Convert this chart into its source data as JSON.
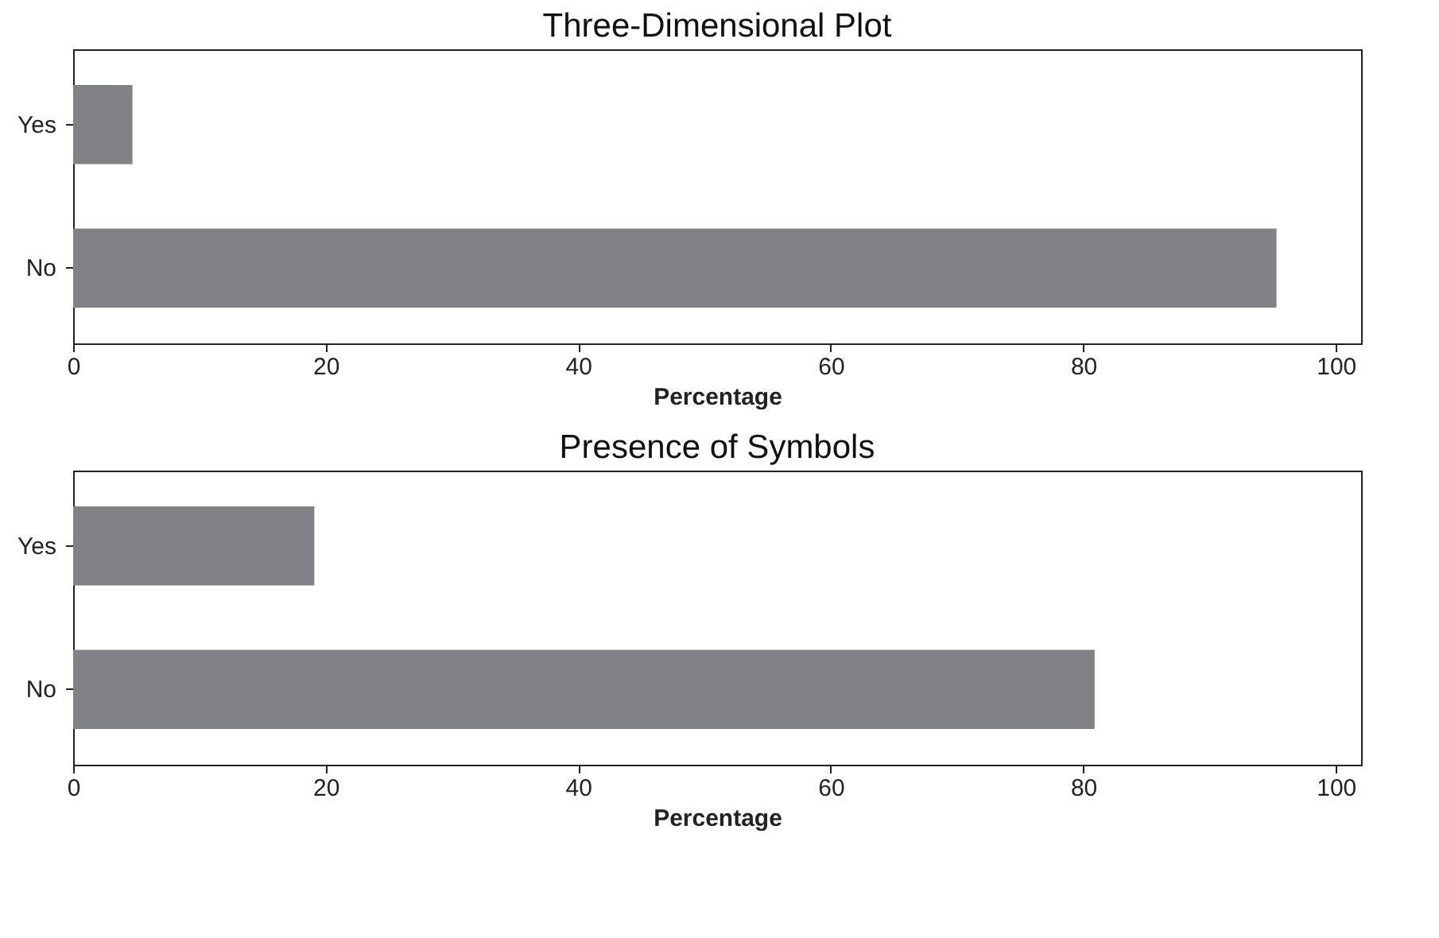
{
  "chart_data": [
    {
      "type": "bar",
      "orientation": "horizontal",
      "title": "Three-Dimensional Plot",
      "xlabel": "Percentage",
      "categories": [
        "Yes",
        "No"
      ],
      "values": [
        4.7,
        95.3
      ],
      "color": "#808285",
      "xlim": [
        0,
        102
      ],
      "xticks": [
        0,
        20,
        40,
        60,
        80,
        100
      ],
      "grid": false
    },
    {
      "type": "bar",
      "orientation": "horizontal",
      "title": "Presence of Symbols",
      "xlabel": "Percentage",
      "categories": [
        "Yes",
        "No"
      ],
      "values": [
        19.1,
        80.9
      ],
      "color": "#808285",
      "xlim": [
        0,
        102
      ],
      "xticks": [
        0,
        20,
        40,
        60,
        80,
        100
      ],
      "grid": false
    }
  ]
}
